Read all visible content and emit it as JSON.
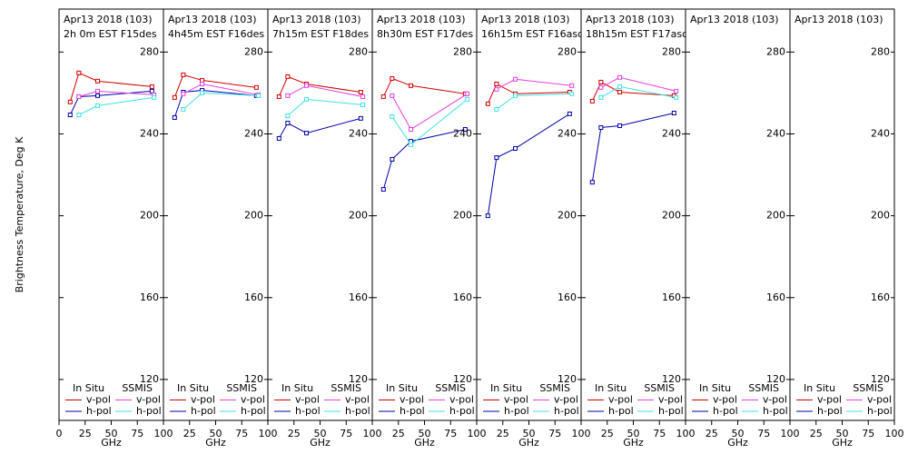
{
  "chart_data": [
    {
      "type": "line",
      "title": [
        "Apr13 2018 (103)",
        "2h 0m EST F15des"
      ],
      "xlabel": "GHz",
      "ylabel": "Brightness Temperature, Deg K",
      "xlim": [
        0,
        100
      ],
      "xticks": [
        0,
        25,
        50,
        75,
        100
      ],
      "ylim": [
        100,
        301
      ],
      "yticks": [
        120,
        160,
        200,
        240,
        280
      ],
      "legend_groups": [
        "In Situ",
        "SSMIS"
      ],
      "series": [
        {
          "name": "v-pol",
          "group": 0,
          "color": "#d00000",
          "x": [
            10.7,
            19,
            37,
            89
          ],
          "values": [
            255.6,
            269.8,
            265.8,
            263.1
          ]
        },
        {
          "name": "h-pol",
          "group": 0,
          "color": "#0000a8",
          "x": [
            10.7,
            19,
            37,
            89
          ],
          "values": [
            249.3,
            258.2,
            258.7,
            260.9
          ]
        },
        {
          "name": "v-pol",
          "group": 1,
          "color": "#e040e0",
          "x": [
            19,
            37,
            91
          ],
          "values": [
            258.2,
            260.9,
            259.1
          ]
        },
        {
          "name": "h-pol",
          "group": 1,
          "color": "#40e0e0",
          "x": [
            19,
            37,
            91
          ],
          "values": [
            249.3,
            253.8,
            257.8
          ]
        }
      ]
    },
    {
      "type": "line",
      "title": [
        "Apr13 2018 (103)",
        "4h45m EST F16des"
      ],
      "xlabel": "GHz",
      "xlim": [
        0,
        100
      ],
      "xticks": [
        25,
        50,
        75,
        100
      ],
      "ylim": [
        100,
        301
      ],
      "yticks": [
        120,
        160,
        200,
        240,
        280
      ],
      "legend_groups": [
        "In Situ",
        "SSMIS"
      ],
      "series": [
        {
          "name": "v-pol",
          "group": 0,
          "color": "#d00000",
          "x": [
            10.7,
            19,
            37,
            89
          ],
          "values": [
            257.8,
            268.9,
            266.2,
            262.7
          ]
        },
        {
          "name": "h-pol",
          "group": 0,
          "color": "#0000a8",
          "x": [
            10.7,
            19,
            37,
            89
          ],
          "values": [
            248,
            260.4,
            261.3,
            258.7
          ]
        },
        {
          "name": "v-pol",
          "group": 1,
          "color": "#e040e0",
          "x": [
            19,
            37,
            91
          ],
          "values": [
            259.6,
            264.4,
            259.1
          ]
        },
        {
          "name": "h-pol",
          "group": 1,
          "color": "#40e0e0",
          "x": [
            19,
            37,
            91
          ],
          "values": [
            252,
            260,
            258.7
          ]
        }
      ]
    },
    {
      "type": "line",
      "title": [
        "Apr13 2018 (103)",
        "7h15m EST F18des"
      ],
      "xlabel": "GHz",
      "xlim": [
        0,
        100
      ],
      "xticks": [
        25,
        50,
        75,
        100
      ],
      "ylim": [
        100,
        301
      ],
      "yticks": [
        120,
        160,
        200,
        240,
        280
      ],
      "legend_groups": [
        "In Situ",
        "SSMIS"
      ],
      "series": [
        {
          "name": "v-pol",
          "group": 0,
          "color": "#d00000",
          "x": [
            10.7,
            19,
            37,
            89
          ],
          "values": [
            258.2,
            268,
            264.4,
            260.4
          ]
        },
        {
          "name": "h-pol",
          "group": 0,
          "color": "#0000a8",
          "x": [
            10.7,
            19,
            37,
            89
          ],
          "values": [
            237.8,
            245.3,
            240.4,
            247.6
          ]
        },
        {
          "name": "v-pol",
          "group": 1,
          "color": "#e040e0",
          "x": [
            19,
            37,
            91
          ],
          "values": [
            258.7,
            263.6,
            258.2
          ]
        },
        {
          "name": "h-pol",
          "group": 1,
          "color": "#40e0e0",
          "x": [
            19,
            37,
            91
          ],
          "values": [
            248.9,
            256.9,
            254.2
          ]
        }
      ]
    },
    {
      "type": "line",
      "title": [
        "Apr13 2018 (103)",
        "8h30m EST F17des"
      ],
      "xlabel": "GHz",
      "xlim": [
        0,
        100
      ],
      "xticks": [
        25,
        50,
        75,
        100
      ],
      "ylim": [
        100,
        301
      ],
      "yticks": [
        120,
        160,
        200,
        240,
        280
      ],
      "legend_groups": [
        "In Situ",
        "SSMIS"
      ],
      "series": [
        {
          "name": "v-pol",
          "group": 0,
          "color": "#d00000",
          "x": [
            10.7,
            19,
            37,
            89
          ],
          "values": [
            258.2,
            267.1,
            263.6,
            259.6
          ]
        },
        {
          "name": "h-pol",
          "group": 0,
          "color": "#0000a8",
          "x": [
            10.7,
            19,
            37,
            89
          ],
          "values": [
            212.9,
            227.6,
            236.4,
            242.2
          ]
        },
        {
          "name": "v-pol",
          "group": 1,
          "color": "#e040e0",
          "x": [
            19,
            37,
            91
          ],
          "values": [
            258.7,
            242.2,
            259.6
          ]
        },
        {
          "name": "h-pol",
          "group": 1,
          "color": "#40e0e0",
          "x": [
            19,
            37,
            91
          ],
          "values": [
            248.4,
            234.7,
            256.9
          ]
        }
      ]
    },
    {
      "type": "line",
      "title": [
        "Apr13 2018 (103)",
        "16h15m EST F16asc"
      ],
      "xlabel": "GHz",
      "xlim": [
        0,
        100
      ],
      "xticks": [
        25,
        50,
        75,
        100
      ],
      "ylim": [
        100,
        301
      ],
      "yticks": [
        120,
        160,
        200,
        240,
        280
      ],
      "legend_groups": [
        "In Situ",
        "SSMIS"
      ],
      "series": [
        {
          "name": "v-pol",
          "group": 0,
          "color": "#d00000",
          "x": [
            10.7,
            19,
            37,
            89
          ],
          "values": [
            254.7,
            264.4,
            259.6,
            260.4
          ]
        },
        {
          "name": "h-pol",
          "group": 0,
          "color": "#0000a8",
          "x": [
            10.7,
            19,
            37,
            89
          ],
          "values": [
            200,
            228.4,
            232.9,
            249.8
          ]
        },
        {
          "name": "v-pol",
          "group": 1,
          "color": "#e040e0",
          "x": [
            19,
            37,
            91
          ],
          "values": [
            261.8,
            266.7,
            263.6
          ]
        },
        {
          "name": "h-pol",
          "group": 1,
          "color": "#40e0e0",
          "x": [
            19,
            37,
            91
          ],
          "values": [
            252,
            258.7,
            259.6
          ]
        }
      ]
    },
    {
      "type": "line",
      "title": [
        "Apr13 2018 (103)",
        "18h15m EST F17asc"
      ],
      "xlabel": "GHz",
      "xlim": [
        0,
        100
      ],
      "xticks": [
        25,
        50,
        75,
        100
      ],
      "ylim": [
        100,
        301
      ],
      "yticks": [
        120,
        160,
        200,
        240,
        280
      ],
      "legend_groups": [
        "In Situ",
        "SSMIS"
      ],
      "series": [
        {
          "name": "v-pol",
          "group": 0,
          "color": "#d00000",
          "x": [
            10.7,
            19,
            37,
            89
          ],
          "values": [
            256,
            265.3,
            260.4,
            258.7
          ]
        },
        {
          "name": "h-pol",
          "group": 0,
          "color": "#0000a8",
          "x": [
            10.7,
            19,
            37,
            89
          ],
          "values": [
            216.4,
            243.1,
            244,
            250.2
          ]
        },
        {
          "name": "v-pol",
          "group": 1,
          "color": "#e040e0",
          "x": [
            19,
            37,
            91
          ],
          "values": [
            262.7,
            267.6,
            260.9
          ]
        },
        {
          "name": "h-pol",
          "group": 1,
          "color": "#40e0e0",
          "x": [
            19,
            37,
            91
          ],
          "values": [
            257.8,
            263.1,
            257.8
          ]
        }
      ]
    },
    {
      "type": "line",
      "title": [
        "Apr13 2018 (103)"
      ],
      "xlabel": "GHz",
      "xlim": [
        0,
        100
      ],
      "xticks": [
        25,
        50,
        75,
        100
      ],
      "ylim": [
        100,
        301
      ],
      "yticks": [
        120,
        160,
        200,
        240,
        280
      ],
      "legend_groups": [
        "In Situ",
        "SSMIS"
      ],
      "series": [
        {
          "name": "v-pol",
          "group": 0,
          "color": "#d00000",
          "x": [],
          "values": []
        },
        {
          "name": "h-pol",
          "group": 0,
          "color": "#0000a8",
          "x": [],
          "values": []
        },
        {
          "name": "v-pol",
          "group": 1,
          "color": "#e040e0",
          "x": [],
          "values": []
        },
        {
          "name": "h-pol",
          "group": 1,
          "color": "#40e0e0",
          "x": [],
          "values": []
        }
      ]
    },
    {
      "type": "line",
      "title": [
        "Apr13 2018 (103)"
      ],
      "xlabel": "GHz",
      "xlim": [
        0,
        100
      ],
      "xticks": [
        25,
        50,
        75,
        100
      ],
      "ylim": [
        100,
        301
      ],
      "yticks": [
        120,
        160,
        200,
        240,
        280
      ],
      "legend_groups": [
        "In Situ",
        "SSMIS"
      ],
      "series": [
        {
          "name": "v-pol",
          "group": 0,
          "color": "#d00000",
          "x": [],
          "values": []
        },
        {
          "name": "h-pol",
          "group": 0,
          "color": "#0000a8",
          "x": [],
          "values": []
        },
        {
          "name": "v-pol",
          "group": 1,
          "color": "#e040e0",
          "x": [],
          "values": []
        },
        {
          "name": "h-pol",
          "group": 1,
          "color": "#40e0e0",
          "x": [],
          "values": []
        }
      ]
    }
  ]
}
